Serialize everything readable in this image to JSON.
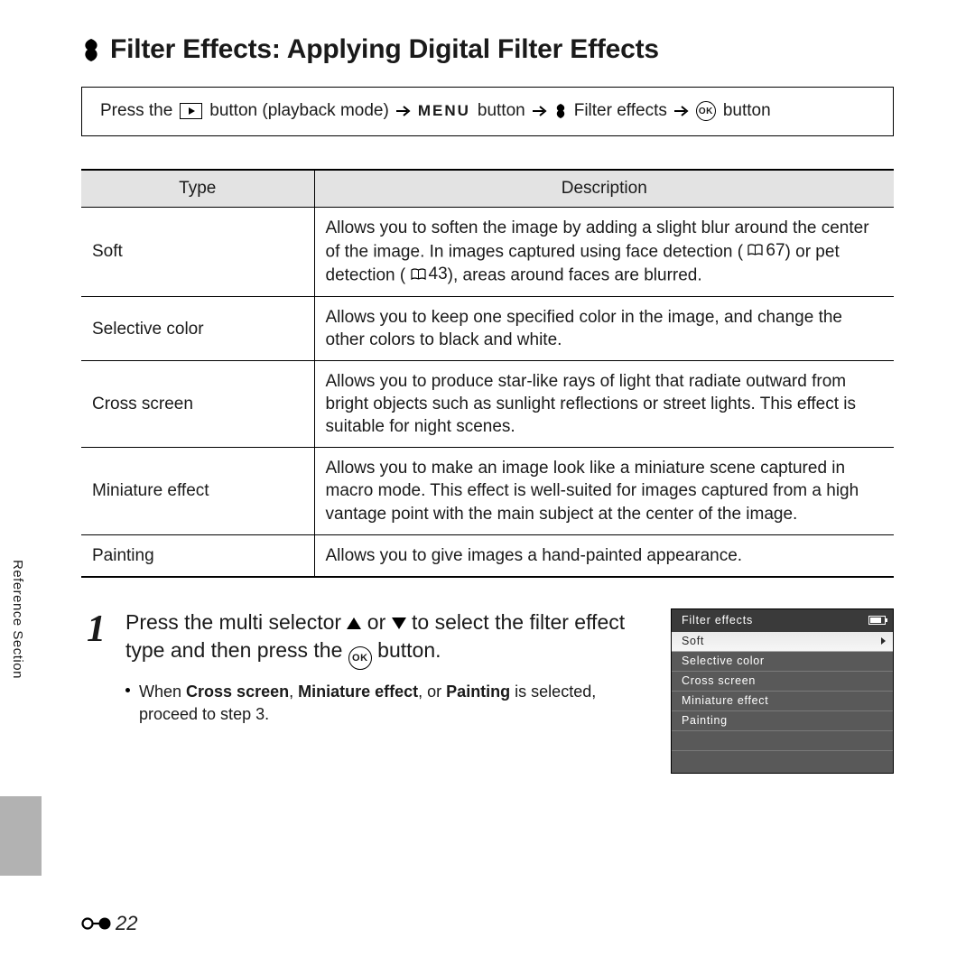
{
  "title": "Filter Effects: Applying Digital Filter Effects",
  "nav": {
    "press_the": "Press the",
    "playback_mode": "button (playback mode)",
    "menu_word": "MENU",
    "menu_button": "button",
    "filter_effects": "Filter effects",
    "ok_button": "button"
  },
  "table": {
    "head_type": "Type",
    "head_desc": "Description",
    "rows": [
      {
        "type": "Soft",
        "desc_a": "Allows you to soften the image by adding a slight blur around the center of the image. In images captured using face detection (",
        "ref1": "67",
        "desc_b": ") or pet detection (",
        "ref2": "43",
        "desc_c": "), areas around faces are blurred."
      },
      {
        "type": "Selective color",
        "desc": "Allows you to keep one specified color in the image, and change the other colors to black and white."
      },
      {
        "type": "Cross screen",
        "desc": "Allows you to produce star-like rays of light that radiate outward from bright objects such as sunlight reflections or street lights. This effect is suitable for night scenes."
      },
      {
        "type": "Miniature effect",
        "desc": "Allows you to make an image look like a miniature scene captured in macro mode. This effect is well-suited for images captured from a high vantage point with the main subject at the center of the image."
      },
      {
        "type": "Painting",
        "desc": "Allows you to give images a hand-painted appearance."
      }
    ]
  },
  "step": {
    "num": "1",
    "head_a": "Press the multi selector ",
    "head_b": " or ",
    "head_c": " to select the filter effect type and then press the ",
    "head_d": " button.",
    "bullet_a": "When ",
    "bullet_cs": "Cross screen",
    "bullet_sep1": ", ",
    "bullet_me": "Miniature effect",
    "bullet_sep2": ", or ",
    "bullet_pt": "Painting",
    "bullet_b": " is selected, proceed to step 3."
  },
  "screen": {
    "title": "Filter effects",
    "items": [
      "Soft",
      "Selective color",
      "Cross screen",
      "Miniature effect",
      "Painting"
    ],
    "selected_index": 0
  },
  "side_label": "Reference Section",
  "page_number": "22"
}
